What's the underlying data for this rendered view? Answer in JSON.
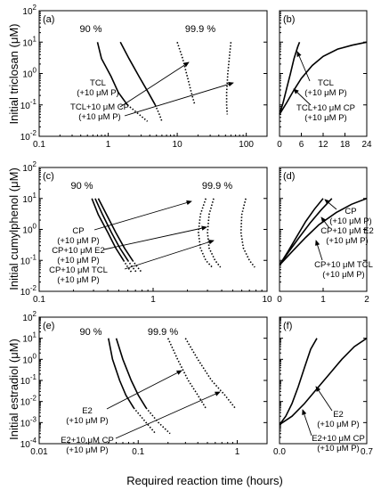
{
  "figure": {
    "xlabel": "Required reaction time (hours)",
    "ylabel_row1": "Initial triclosan (μM)",
    "ylabel_row2": "Initial cumylphenol (μM)",
    "ylabel_row3": "Initial estradiol (μM)"
  },
  "chart_data": [
    {
      "panel": "(a)",
      "type": "line",
      "xscale": "log",
      "yscale": "log",
      "xlim": [
        0.1,
        200
      ],
      "ylim": [
        0.01,
        100
      ],
      "xticks": [
        "0.1",
        "1",
        "10",
        "100"
      ],
      "yticks": [
        "10²",
        "10¹",
        "10⁰",
        "10⁻¹",
        "10⁻²"
      ],
      "labels_90": "90 %",
      "labels_999": "99.9 %",
      "legend": [
        "TCL\n(+10 μM P)",
        "TCL+10 μM CP\n(+10 μM P)"
      ],
      "series": [
        {
          "group": "90 %",
          "x": [
            0.7,
            0.8,
            1.1,
            1.4,
            1.9
          ],
          "y": [
            10,
            3,
            0.8,
            0.25,
            0.1
          ],
          "style": "solid"
        },
        {
          "group": "90 %",
          "x": [
            1.9,
            2.8,
            3.7
          ],
          "y": [
            0.1,
            0.05,
            0.03
          ],
          "style": "dotted"
        },
        {
          "group": "90 %",
          "x": [
            1.5,
            2.0,
            2.8,
            3.8,
            4.8
          ],
          "y": [
            10,
            3,
            0.8,
            0.25,
            0.1
          ],
          "style": "solid"
        },
        {
          "group": "90 %",
          "x": [
            4.8,
            5.5,
            6.0
          ],
          "y": [
            0.1,
            0.05,
            0.03
          ],
          "style": "dotted"
        },
        {
          "group": "99.9 %",
          "x": [
            10,
            12,
            14,
            16,
            18
          ],
          "y": [
            10,
            3,
            0.8,
            0.25,
            0.1
          ],
          "style": "dotted"
        },
        {
          "group": "99.9 %",
          "x": [
            60,
            58,
            54,
            52,
            52,
            53
          ],
          "y": [
            10,
            5,
            1,
            0.25,
            0.1,
            0.05
          ],
          "style": "dotted"
        }
      ]
    },
    {
      "panel": "(b)",
      "type": "line",
      "xscale": "linear",
      "yscale": "log",
      "xlim": [
        0,
        24
      ],
      "ylim": [
        0.01,
        100
      ],
      "xticks": [
        "0",
        "6",
        "12",
        "18",
        "24"
      ],
      "legend": [
        "TCL\n(+10 μM P)",
        "TCL+10 μM CP\n(+10 μM P)"
      ],
      "series": [
        {
          "name": "TCL (+10 μM P)",
          "x": [
            0,
            1,
            2,
            3,
            4,
            5,
            5.5
          ],
          "y": [
            0.05,
            0.12,
            0.35,
            1,
            3,
            7,
            10
          ],
          "style": "solid"
        },
        {
          "name": "TCL+10 μM CP (+10 μM P)",
          "x": [
            0,
            2,
            4,
            6,
            9,
            12,
            16,
            20,
            24
          ],
          "y": [
            0.05,
            0.12,
            0.3,
            0.7,
            1.8,
            3.5,
            6,
            8,
            10
          ],
          "style": "solid"
        }
      ]
    },
    {
      "panel": "(c)",
      "type": "line",
      "xscale": "log",
      "yscale": "log",
      "xlim": [
        0.1,
        10
      ],
      "ylim": [
        0.01,
        100
      ],
      "xticks": [
        "0.1",
        "1",
        "10"
      ],
      "yticks": [
        "10²",
        "10¹",
        "10⁰",
        "10⁻¹",
        "10⁻²"
      ],
      "labels_90": "90 %",
      "labels_999": "99.9 %",
      "legend": [
        "CP\n(+10 μM P)",
        "CP+10 μM E2\n(+10 μM P)",
        "CP+10 μM TCL\n(+10 μM P)"
      ],
      "series": [
        {
          "group": "90 %",
          "x": [
            0.29,
            0.33,
            0.4,
            0.47,
            0.55
          ],
          "y": [
            10,
            3,
            0.8,
            0.25,
            0.1
          ],
          "style": "solid"
        },
        {
          "group": "90 %",
          "x": [
            0.55,
            0.6,
            0.65
          ],
          "y": [
            0.1,
            0.06,
            0.04
          ],
          "style": "dotted"
        },
        {
          "group": "90 %",
          "x": [
            0.31,
            0.36,
            0.43,
            0.51,
            0.6
          ],
          "y": [
            10,
            3,
            0.8,
            0.25,
            0.1
          ],
          "style": "solid"
        },
        {
          "group": "90 %",
          "x": [
            0.6,
            0.66,
            0.72
          ],
          "y": [
            0.1,
            0.06,
            0.04
          ],
          "style": "dotted"
        },
        {
          "group": "90 %",
          "x": [
            0.33,
            0.39,
            0.47,
            0.56,
            0.66
          ],
          "y": [
            10,
            3,
            0.8,
            0.25,
            0.1
          ],
          "style": "solid"
        },
        {
          "group": "90 %",
          "x": [
            0.66,
            0.73,
            0.8
          ],
          "y": [
            0.1,
            0.06,
            0.04
          ],
          "style": "dotted"
        },
        {
          "group": "99.9 %",
          "x": [
            2.9,
            2.6,
            2.5,
            2.6,
            2.9,
            3.3
          ],
          "y": [
            10,
            3,
            0.8,
            0.25,
            0.1,
            0.06
          ],
          "style": "dotted"
        },
        {
          "group": "99.9 %",
          "x": [
            3.4,
            3.1,
            3.0,
            3.1,
            3.5,
            3.9
          ],
          "y": [
            10,
            3,
            0.8,
            0.25,
            0.1,
            0.06
          ],
          "style": "dotted"
        },
        {
          "group": "99.9 %",
          "x": [
            6.5,
            6.0,
            5.9,
            6.2,
            7.0,
            7.8
          ],
          "y": [
            10,
            3,
            0.8,
            0.25,
            0.1,
            0.06
          ],
          "style": "dotted"
        }
      ]
    },
    {
      "panel": "(d)",
      "type": "line",
      "xscale": "linear",
      "yscale": "log",
      "xlim": [
        0,
        2
      ],
      "ylim": [
        0.01,
        100
      ],
      "xticks": [
        "0",
        "1",
        "2"
      ],
      "legend": [
        "CP\n(+10 μM P)",
        "CP+10 μM E2\n(+10 μM P)",
        "CP+10 μM TCL\n(+10 μM P)"
      ],
      "series": [
        {
          "name": "CP (+10 μM P)",
          "x": [
            0,
            0.2,
            0.4,
            0.6,
            0.8,
            1.0
          ],
          "y": [
            0.07,
            0.2,
            0.6,
            1.8,
            4.5,
            10
          ],
          "style": "solid"
        },
        {
          "name": "CP+10 μM E2 (+10 μM P)",
          "x": [
            0,
            0.2,
            0.45,
            0.7,
            0.95,
            1.2
          ],
          "y": [
            0.07,
            0.18,
            0.55,
            1.6,
            4.2,
            10
          ],
          "style": "solid"
        },
        {
          "name": "CP+10 μM TCL (+10 μM P)",
          "x": [
            0,
            0.3,
            0.6,
            0.9,
            1.3,
            1.65,
            2.0
          ],
          "y": [
            0.07,
            0.2,
            0.55,
            1.4,
            3.5,
            6.5,
            10
          ],
          "style": "solid"
        }
      ]
    },
    {
      "panel": "(e)",
      "type": "line",
      "xscale": "log",
      "yscale": "log",
      "xlim": [
        0.01,
        2
      ],
      "ylim": [
        0.0001,
        100
      ],
      "xticks": [
        "0.01",
        "0.1",
        "1"
      ],
      "yticks": [
        "10²",
        "10¹",
        "10⁰",
        "10⁻¹",
        "10⁻²",
        "10⁻³",
        "10⁻⁴"
      ],
      "labels_90": "90 %",
      "labels_999": "99.9 %",
      "legend": [
        "E2\n(+10 μM P)",
        "E2+10 μM CP\n(+10 μM P)"
      ],
      "series": [
        {
          "group": "90 %",
          "x": [
            0.05,
            0.055,
            0.065,
            0.075,
            0.09
          ],
          "y": [
            10,
            1,
            0.1,
            0.02,
            0.005
          ],
          "style": "solid"
        },
        {
          "group": "90 %",
          "x": [
            0.09,
            0.12,
            0.15
          ],
          "y": [
            0.005,
            0.001,
            0.0003
          ],
          "style": "dotted"
        },
        {
          "group": "90 %",
          "x": [
            0.06,
            0.07,
            0.085,
            0.1,
            0.12
          ],
          "y": [
            10,
            1,
            0.1,
            0.02,
            0.005
          ],
          "style": "solid"
        },
        {
          "group": "90 %",
          "x": [
            0.12,
            0.16,
            0.21
          ],
          "y": [
            0.005,
            0.001,
            0.0003
          ],
          "style": "dotted"
        },
        {
          "group": "99.9 %",
          "x": [
            0.2,
            0.25,
            0.32,
            0.4,
            0.48
          ],
          "y": [
            10,
            1,
            0.1,
            0.02,
            0.005
          ],
          "style": "dotted"
        },
        {
          "group": "99.9 %",
          "x": [
            0.3,
            0.4,
            0.55,
            0.75,
            0.95
          ],
          "y": [
            10,
            1,
            0.1,
            0.02,
            0.005
          ],
          "style": "dotted"
        }
      ]
    },
    {
      "panel": "(f)",
      "type": "line",
      "xscale": "linear",
      "yscale": "log",
      "xlim": [
        0,
        0.7
      ],
      "ylim": [
        0.0001,
        100
      ],
      "xticks": [
        "0.0",
        "0.7"
      ],
      "legend": [
        "E2\n(+10 μM P)",
        "E2+10 μM CP\n(+10 μM P)"
      ],
      "series": [
        {
          "name": "E2 (+10 μM P)",
          "x": [
            0,
            0.05,
            0.1,
            0.15,
            0.2,
            0.25,
            0.3
          ],
          "y": [
            0.0008,
            0.002,
            0.008,
            0.05,
            0.4,
            3,
            10
          ],
          "style": "solid"
        },
        {
          "name": "E2+10 μM CP (+10 μM P)",
          "x": [
            0,
            0.1,
            0.2,
            0.3,
            0.4,
            0.5,
            0.6,
            0.7
          ],
          "y": [
            0.0008,
            0.002,
            0.008,
            0.04,
            0.2,
            1,
            4,
            10
          ],
          "style": "solid"
        }
      ]
    }
  ]
}
